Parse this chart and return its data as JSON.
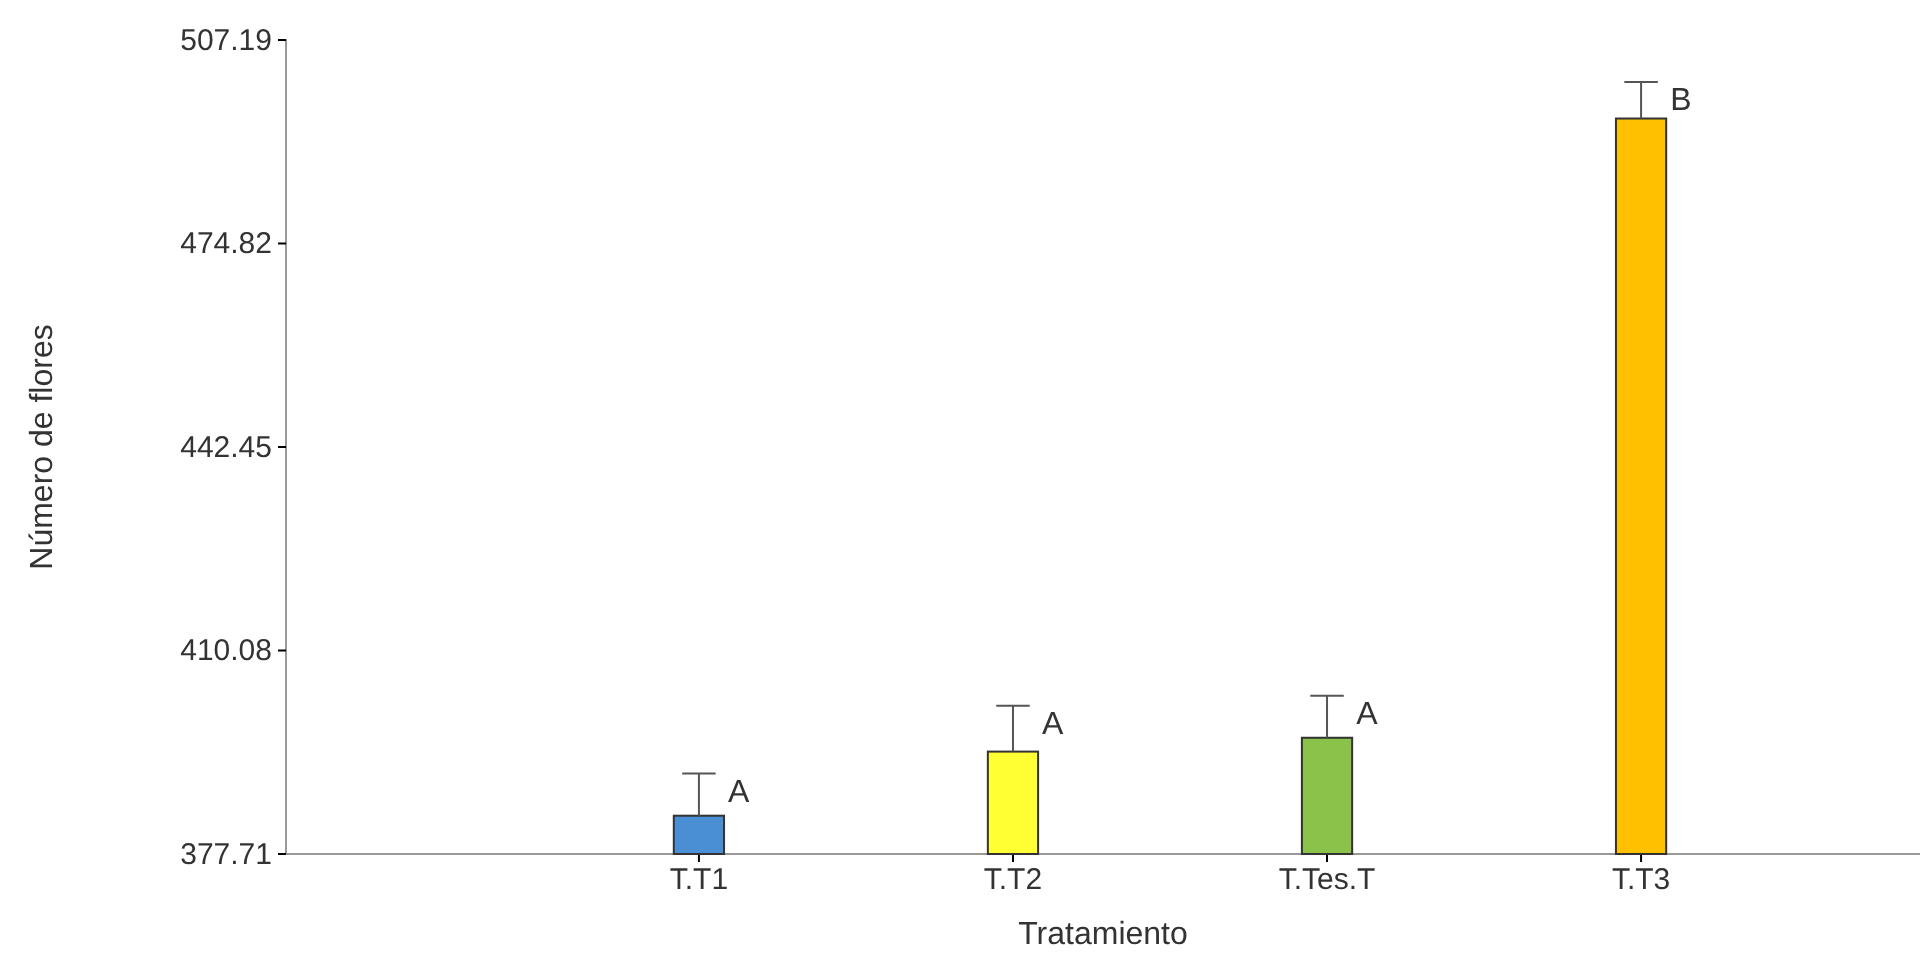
{
  "chart_data": {
    "type": "bar",
    "xlabel": "Tratamiento",
    "ylabel": "Número de flores",
    "categories": [
      "T.T1",
      "T.T2",
      "T.Tes.T",
      "T.T3"
    ],
    "values": [
      383.8,
      394.0,
      396.2,
      494.7
    ],
    "colors": [
      "#4a8fd4",
      "#ffff33",
      "#8bc34a",
      "#ffc000"
    ],
    "errors": [
      [
        383.8,
        390.5
      ],
      [
        394.0,
        401.3
      ],
      [
        396.2,
        402.9
      ],
      [
        494.7,
        500.5
      ]
    ],
    "ylim": [
      377.71,
      507.19
    ],
    "yticks": [
      377.71,
      410.08,
      442.45,
      474.82,
      507.19
    ],
    "annotations": [
      "A",
      "A",
      "A",
      "B"
    ],
    "grid": false
  }
}
